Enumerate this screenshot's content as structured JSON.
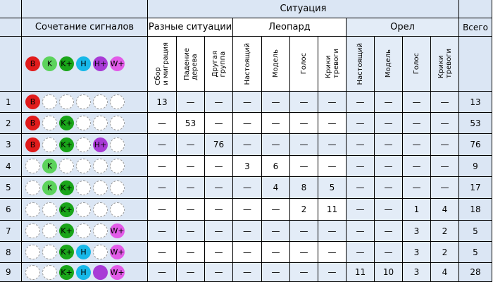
{
  "header": {
    "situation": "Ситуация",
    "signal_combo": "Сочетание сигналов",
    "different": "Разные ситуации",
    "leopard": "Леопард",
    "eagle": "Орел",
    "total": "Всего"
  },
  "subheaders": [
    "Сбор\nи миграция",
    "Падение\nдерева",
    "Другая\nгруппа",
    "Настоящий",
    "Модель",
    "Голос",
    "Крики\nтревоги",
    "Настоящий",
    "Модель",
    "Голос",
    "Крики\nтревоги"
  ],
  "legend": [
    {
      "label": "B",
      "kind": "B"
    },
    {
      "label": "K",
      "kind": "K"
    },
    {
      "label": "K+",
      "kind": "Kp"
    },
    {
      "label": "H",
      "kind": "H"
    },
    {
      "label": "H+",
      "kind": "Hp"
    },
    {
      "label": "W+",
      "kind": "Wp"
    }
  ],
  "rows": [
    {
      "n": "1",
      "signals": [
        {
          "k": "B",
          "t": "B"
        },
        null,
        null,
        null,
        null,
        null
      ],
      "values": [
        "13",
        "—",
        "—",
        "—",
        "—",
        "—",
        "—",
        "—",
        "—",
        "—",
        "—"
      ],
      "total": "13"
    },
    {
      "n": "2",
      "signals": [
        {
          "k": "B",
          "t": "B"
        },
        null,
        {
          "k": "Kp",
          "t": "K+"
        },
        null,
        null,
        null
      ],
      "values": [
        "—",
        "53",
        "—",
        "—",
        "—",
        "—",
        "—",
        "—",
        "—",
        "—",
        "—"
      ],
      "total": "53"
    },
    {
      "n": "3",
      "signals": [
        {
          "k": "B",
          "t": "B"
        },
        null,
        {
          "k": "Kp",
          "t": "K+"
        },
        null,
        {
          "k": "Hp",
          "t": "H+"
        },
        null
      ],
      "values": [
        "—",
        "—",
        "76",
        "—",
        "—",
        "—",
        "—",
        "—",
        "—",
        "—",
        "—"
      ],
      "total": "76"
    },
    {
      "n": "4",
      "signals": [
        null,
        {
          "k": "K",
          "t": "K"
        },
        null,
        null,
        null,
        null
      ],
      "values": [
        "—",
        "—",
        "—",
        "3",
        "6",
        "—",
        "—",
        "—",
        "—",
        "—",
        "—"
      ],
      "total": "9"
    },
    {
      "n": "5",
      "signals": [
        null,
        {
          "k": "K",
          "t": "K"
        },
        {
          "k": "Kp",
          "t": "K+"
        },
        null,
        null,
        null
      ],
      "values": [
        "—",
        "—",
        "—",
        "—",
        "4",
        "8",
        "5",
        "—",
        "—",
        "—",
        "—"
      ],
      "total": "17"
    },
    {
      "n": "6",
      "signals": [
        null,
        null,
        {
          "k": "Kp",
          "t": "K+"
        },
        null,
        null,
        null
      ],
      "values": [
        "—",
        "—",
        "—",
        "—",
        "—",
        "2",
        "11",
        "—",
        "—",
        "1",
        "4"
      ],
      "total": "18"
    },
    {
      "n": "7",
      "signals": [
        null,
        null,
        {
          "k": "Kp",
          "t": "K+"
        },
        null,
        null,
        {
          "k": "Wp",
          "t": "W+"
        }
      ],
      "values": [
        "—",
        "—",
        "—",
        "—",
        "—",
        "—",
        "—",
        "—",
        "—",
        "3",
        "2"
      ],
      "total": "5"
    },
    {
      "n": "8",
      "signals": [
        null,
        null,
        {
          "k": "Kp",
          "t": "K+"
        },
        {
          "k": "H",
          "t": "H"
        },
        null,
        {
          "k": "Wp",
          "t": "W+"
        }
      ],
      "values": [
        "—",
        "—",
        "—",
        "—",
        "—",
        "—",
        "—",
        "—",
        "—",
        "3",
        "2"
      ],
      "total": "5"
    },
    {
      "n": "9",
      "signals": [
        null,
        null,
        {
          "k": "Kp",
          "t": "K+"
        },
        {
          "k": "H",
          "t": "H"
        },
        {
          "k": "P",
          "t": ""
        },
        {
          "k": "Wp",
          "t": "W+"
        }
      ],
      "values": [
        "—",
        "—",
        "—",
        "—",
        "—",
        "—",
        "—",
        "11",
        "10",
        "3",
        "4"
      ],
      "total": "28"
    }
  ]
}
